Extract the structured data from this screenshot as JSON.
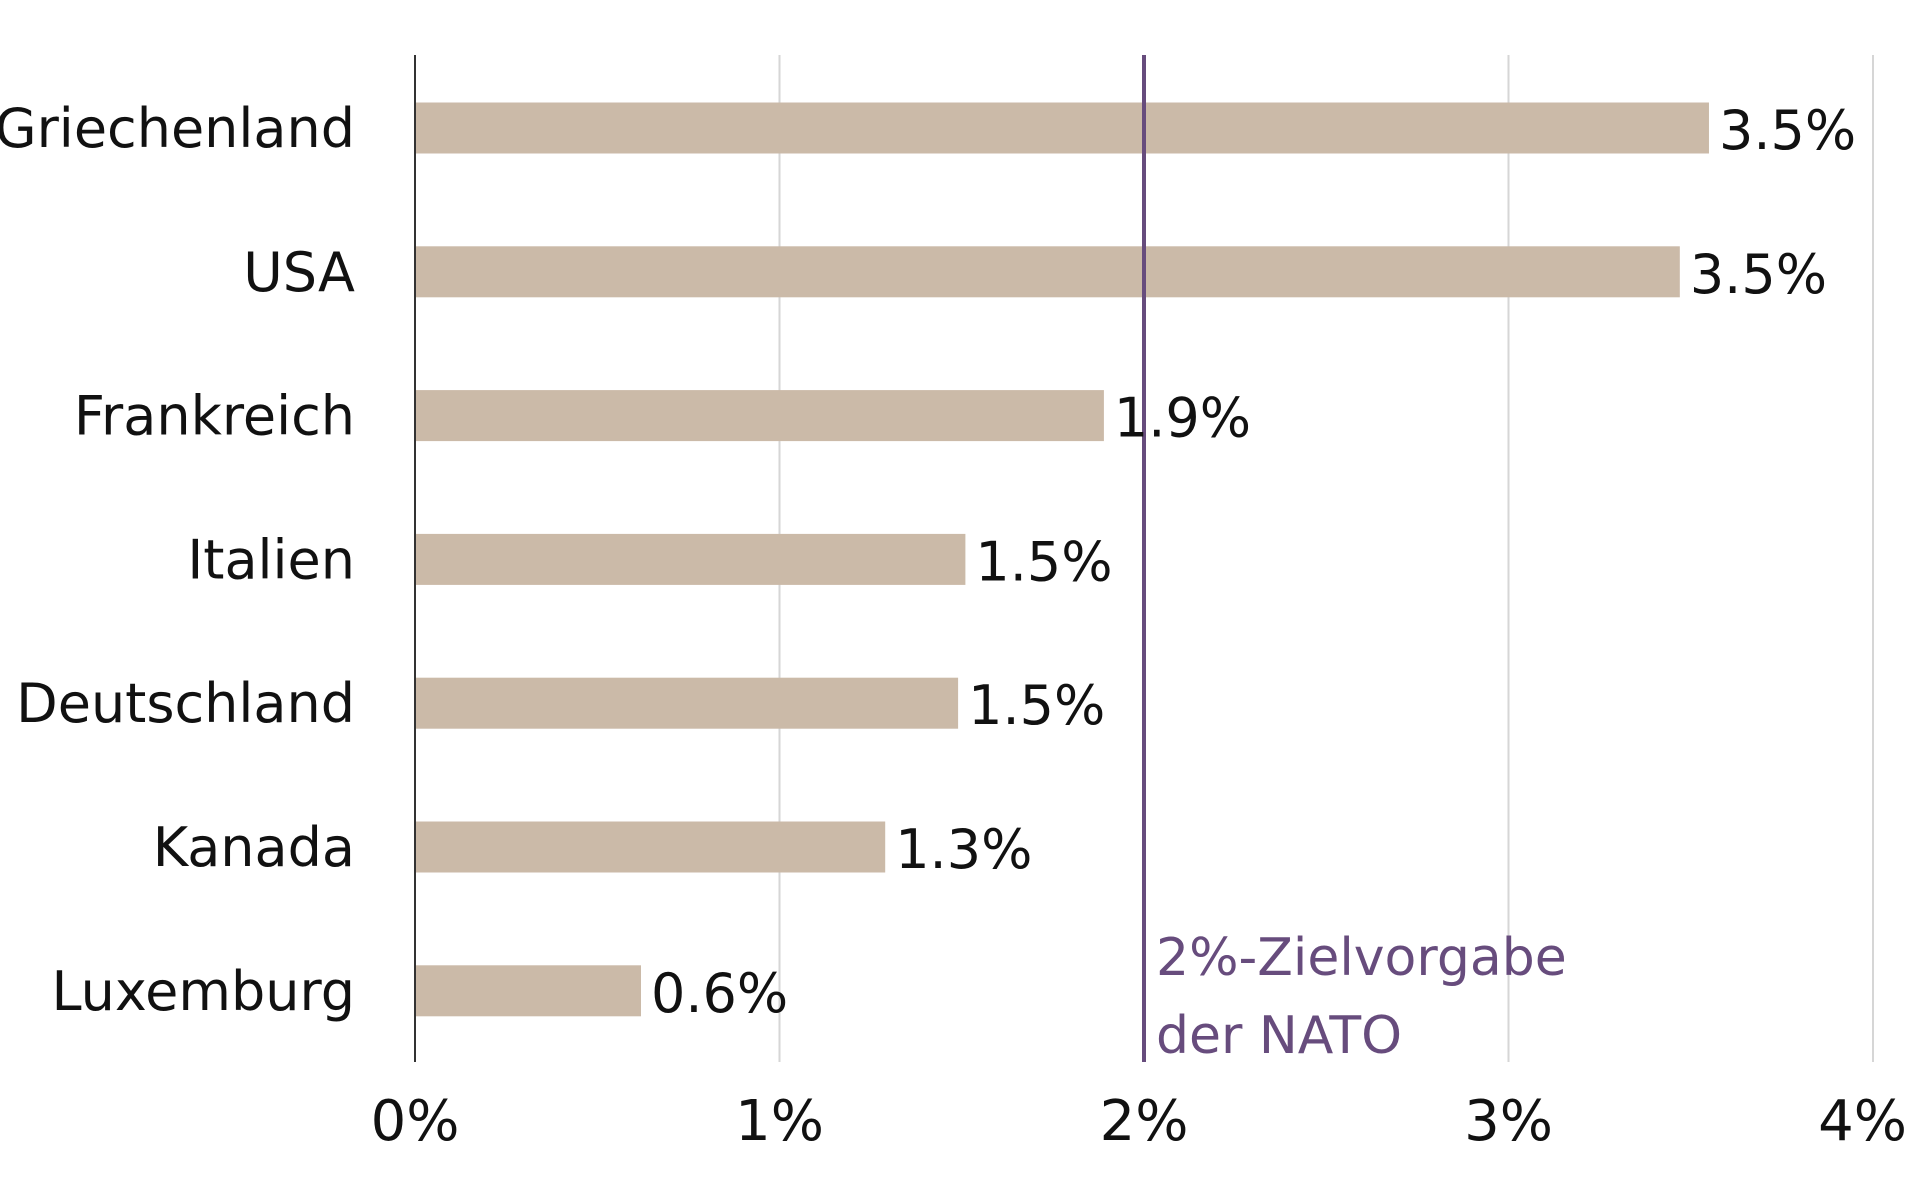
{
  "chart_data": {
    "type": "bar",
    "orientation": "horizontal",
    "categories": [
      "Griechenland",
      "USA",
      "Frankreich",
      "Italien",
      "Deutschland",
      "Kanada",
      "Luxemburg"
    ],
    "values": [
      3.55,
      3.47,
      1.89,
      1.51,
      1.49,
      1.29,
      0.62
    ],
    "value_labels": [
      "3.5%",
      "3.5%",
      "1.9%",
      "1.5%",
      "1.5%",
      "1.3%",
      "0.6%"
    ],
    "xlim": [
      0,
      4
    ],
    "x_ticks": [
      0,
      1,
      2,
      3,
      4
    ],
    "x_tick_labels": [
      "0%",
      "1%",
      "2%",
      "3%",
      "4%"
    ],
    "grid": true,
    "reference_line": {
      "value": 2,
      "label_lines": [
        "2%-Zielvorgabe",
        "der NATO"
      ]
    },
    "colors": {
      "bar": "#cbbaa8",
      "reference": "#674c7d",
      "grid": "#d6d6d6",
      "axis": "#333333",
      "text": "#111111"
    }
  }
}
